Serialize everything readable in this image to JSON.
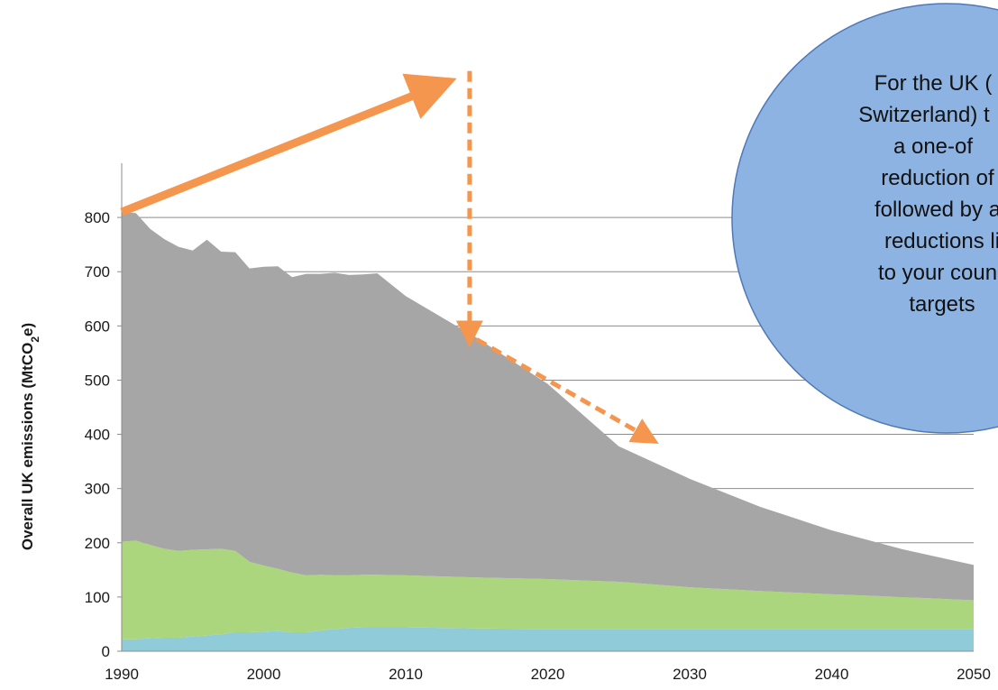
{
  "chart_data": {
    "type": "area",
    "stacked": true,
    "ylabel": "Overall UK emissions (MtCO2e)",
    "ylabel_parts": {
      "main": "Overall UK emissions (MtCO",
      "sub": "2",
      "tail": "e)"
    },
    "xlim": [
      1990,
      2050
    ],
    "ylim": [
      0,
      900
    ],
    "x_ticks": [
      1990,
      2000,
      2010,
      2020,
      2030,
      2040,
      2050
    ],
    "y_ticks": [
      0,
      100,
      200,
      300,
      400,
      500,
      600,
      700,
      800
    ],
    "grid": true,
    "colors": [
      "#8fcbd9",
      "#abd67e",
      "#a6a6a6"
    ],
    "x": [
      1990,
      1991,
      1992,
      1993,
      1994,
      1995,
      1996,
      1997,
      1998,
      1999,
      2000,
      2001,
      2002,
      2003,
      2004,
      2005,
      2006,
      2007,
      2008,
      2010,
      2015,
      2020,
      2025,
      2030,
      2035,
      2040,
      2045,
      2050
    ],
    "series": [
      {
        "values": [
          22,
          22,
          24,
          25,
          25,
          27,
          29,
          31,
          35,
          35,
          36,
          37,
          35,
          35,
          38,
          41,
          43,
          44,
          44,
          44,
          42,
          41,
          41,
          41,
          41,
          41,
          41,
          41
        ]
      },
      {
        "values": [
          180,
          182,
          172,
          164,
          160,
          160,
          159,
          158,
          150,
          130,
          122,
          115,
          110,
          105,
          103,
          99,
          97,
          97,
          97,
          96,
          94,
          92,
          87,
          77,
          70,
          64,
          59,
          53
        ]
      },
      {
        "values": [
          608,
          604,
          583,
          571,
          561,
          552,
          571,
          548,
          551,
          541,
          551,
          558,
          545,
          556,
          555,
          558,
          554,
          554,
          556,
          515,
          442,
          360,
          250,
          200,
          155,
          118,
          88,
          65
        ]
      }
    ],
    "annotations": [
      {
        "type": "solid-arrow",
        "from": [
          1990,
          810
        ],
        "to": [
          2012,
          1040
        ],
        "color": "#f5964f"
      },
      {
        "type": "dashed-arrow",
        "from": [
          2014.5,
          1070
        ],
        "to": [
          2014.5,
          585
        ],
        "color": "#f5964f"
      },
      {
        "type": "dashed-arrow",
        "from": [
          2015,
          575
        ],
        "to": [
          2027,
          395
        ],
        "color": "#f5964f"
      }
    ]
  },
  "callout": {
    "lines": [
      "For the UK (",
      "Switzerland) t",
      "a one-of",
      "reduction of",
      "followed by a",
      "reductions li",
      "to your coun",
      "targets"
    ],
    "fill": "#8db3e2",
    "stroke": "#4f78b7"
  }
}
